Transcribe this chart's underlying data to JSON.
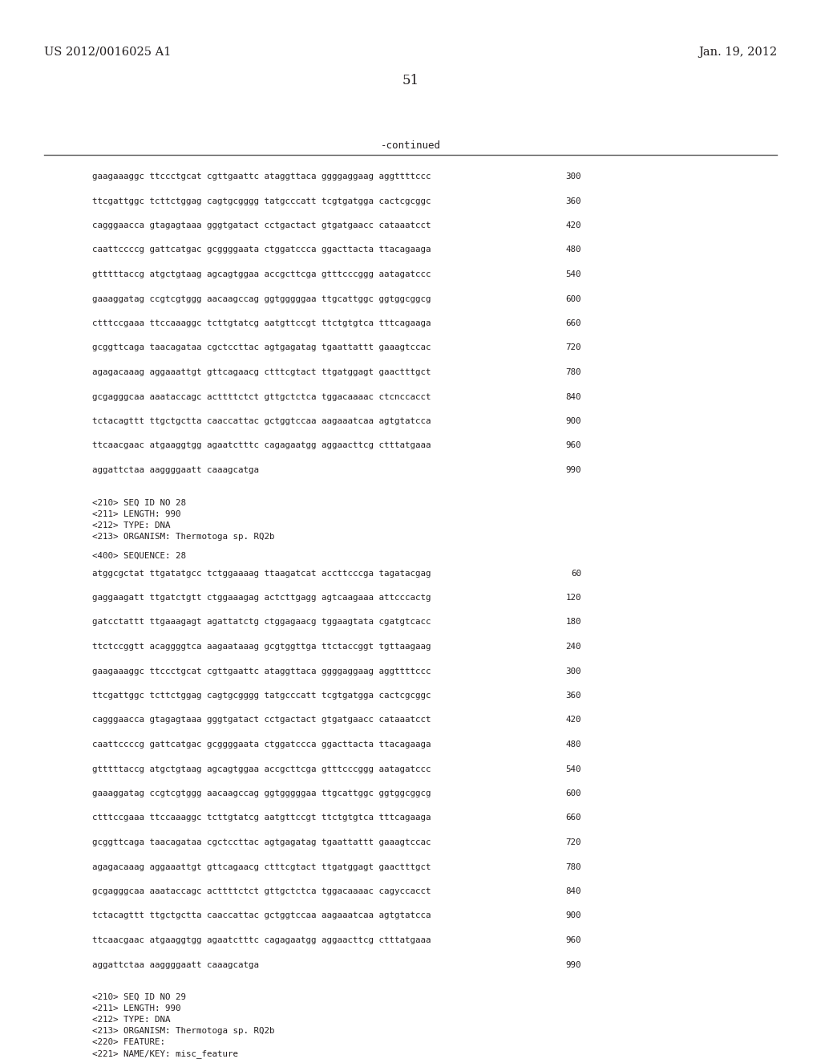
{
  "header_left": "US 2012/0016025 A1",
  "header_right": "Jan. 19, 2012",
  "page_number": "51",
  "continued_label": "-continued",
  "background_color": "#ffffff",
  "text_color": "#231f20",
  "first_seq_lines": [
    [
      "gaagaaaggc ttccctgcat cgttgaattc ataggttaca ggggaggaag aggttttccc",
      "300"
    ],
    [
      "ttcgattggc tcttctggag cagtgcgggg tatgcccatt tcgtgatgga cactcgcggc",
      "360"
    ],
    [
      "cagggaacca gtagagtaaa gggtgatact cctgactact gtgatgaacc cataaatcct",
      "420"
    ],
    [
      "caattccccg gattcatgac gcggggaata ctggatccca ggacttacta ttacagaaga",
      "480"
    ],
    [
      "gtttttaccg atgctgtaag agcagtggaa accgcttcga gtttcccggg aatagatccc",
      "540"
    ],
    [
      "gaaaggatag ccgtcgtggg aacaagccag ggtgggggaa ttgcattggc ggtggcggcg",
      "600"
    ],
    [
      "ctttccgaaa ttccaaaggc tcttgtatcg aatgttccgt ttctgtgtca tttcagaaga",
      "660"
    ],
    [
      "gcggttcaga taacagataa cgctccttac agtgagatag tgaattattt gaaagtccac",
      "720"
    ],
    [
      "agagacaaag aggaaattgt gttcagaacg ctttcgtact ttgatggagt gaactttgct",
      "780"
    ],
    [
      "gcgagggcaa aaataccagc acttttctct gttgctctca tggacaaaac ctcnccacct",
      "840"
    ],
    [
      "tctacagttt ttgctgctta caaccattac gctggtccaa aagaaatcaa agtgtatcca",
      "900"
    ],
    [
      "ttcaacgaac atgaaggtgg agaatctttc cagagaatgg aggaacttcg ctttatgaaa",
      "960"
    ],
    [
      "aggattctaa aaggggaatt caaagcatga",
      "990"
    ]
  ],
  "meta_28": [
    "<210> SEQ ID NO 28",
    "<211> LENGTH: 990",
    "<212> TYPE: DNA",
    "<213> ORGANISM: Thermotoga sp. RQ2b"
  ],
  "seq400_28": "<400> SEQUENCE: 28",
  "second_seq_lines": [
    [
      "atggcgctat ttgatatgcc tctggaaaag ttaagatcat accttcccga tagatacgag",
      "60"
    ],
    [
      "gaggaagatt ttgatctgtt ctggaaagag actcttgagg agtcaagaaa attcccactg",
      "120"
    ],
    [
      "gatcctattt ttgaaagagt agattatctg ctggagaacg tggaagtata cgatgtcacc",
      "180"
    ],
    [
      "ttctccggtt acaggggtca aagaataaag gcgtggttga ttctaccggt tgttaagaag",
      "240"
    ],
    [
      "gaagaaaggc ttccctgcat cgttgaattc ataggttaca ggggaggaag aggttttccc",
      "300"
    ],
    [
      "ttcgattggc tcttctggag cagtgcgggg tatgcccatt tcgtgatgga cactcgcggc",
      "360"
    ],
    [
      "cagggaacca gtagagtaaa gggtgatact cctgactact gtgatgaacc cataaatcct",
      "420"
    ],
    [
      "caattccccg gattcatgac gcggggaata ctggatccca ggacttacta ttacagaaga",
      "480"
    ],
    [
      "gtttttaccg atgctgtaag agcagtggaa accgcttcga gtttcccggg aatagatccc",
      "540"
    ],
    [
      "gaaaggatag ccgtcgtggg aacaagccag ggtgggggaa ttgcattggc ggtggcggcg",
      "600"
    ],
    [
      "ctttccgaaa ttccaaaggc tcttgtatcg aatgttccgt ttctgtgtca tttcagaaga",
      "660"
    ],
    [
      "gcggttcaga taacagataa cgctccttac agtgagatag tgaattattt gaaagtccac",
      "720"
    ],
    [
      "agagacaaag aggaaattgt gttcagaacg ctttcgtact ttgatggagt gaactttgct",
      "780"
    ],
    [
      "gcgagggcaa aaataccagc acttttctct gttgctctca tggacaaaac cagyccacct",
      "840"
    ],
    [
      "tctacagttt ttgctgctta caaccattac gctggtccaa aagaaatcaa agtgtatcca",
      "900"
    ],
    [
      "ttcaacgaac atgaaggtgg agaatctttc cagagaatgg aggaacttcg ctttatgaaa",
      "960"
    ],
    [
      "aggattctaa aaggggaatt caaagcatga",
      "990"
    ]
  ],
  "meta_29": [
    "<210> SEQ ID NO 29",
    "<211> LENGTH: 990",
    "<212> TYPE: DNA",
    "<213> ORGANISM: Thermotoga sp. RQ2b",
    "<220> FEATURE:",
    "<221> NAME/KEY: misc_feature"
  ]
}
